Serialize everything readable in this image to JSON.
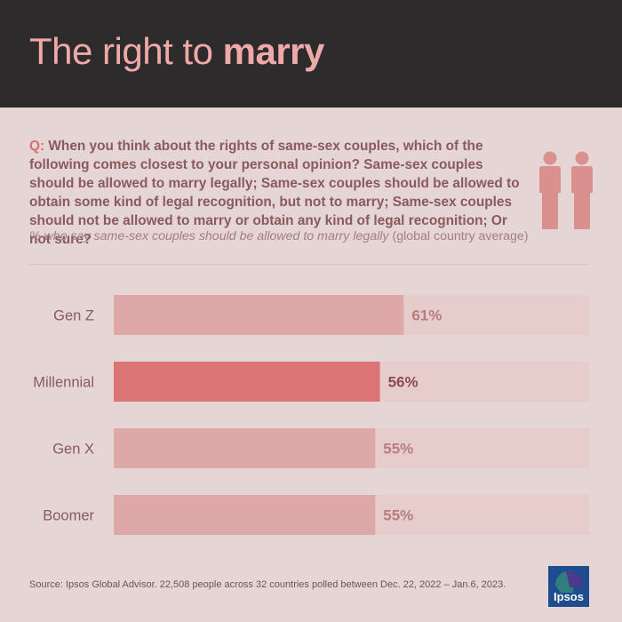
{
  "header": {
    "title_plain": "The right to ",
    "title_bold": "marry"
  },
  "question": {
    "label": "Q:",
    "text": "When you think about the rights of same-sex couples, which of the following comes closest to your personal opinion? Same-sex couples should be allowed to marry legally; Same-sex couples should be allowed to obtain some kind of legal recognition, but not to marry; Same-sex couples should not be allowed to marry or obtain any kind of legal recognition; Or not sure?"
  },
  "subtitle": {
    "italic": "% who say same-sex couples should be allowed to marry legally",
    "plain": " (global country average)"
  },
  "chart_data": {
    "type": "bar",
    "orientation": "horizontal",
    "categories": [
      "Gen Z",
      "Millennial",
      "Gen X",
      "Boomer"
    ],
    "values": [
      61,
      56,
      55,
      55
    ],
    "value_labels": [
      "61%",
      "56%",
      "55%",
      "55%"
    ],
    "highlighted_category": "Millennial",
    "xlim": [
      0,
      100
    ],
    "grid": false,
    "colors": {
      "bar": "#dfa8a8",
      "bar_highlight": "#db7575",
      "track": "#e7cccc",
      "label": "#8a5a5c",
      "value_label": "#b87d7f",
      "value_label_highlight": "#8a4c4e"
    }
  },
  "colors": {
    "header_bg": "#2d2b2b",
    "title": "#f0a9a9",
    "page_bg": "#e5d5d5",
    "icon": "#d9908e",
    "logo_bg": "#1d4d8f"
  },
  "footer": {
    "source": "Source: Ipsos Global Advisor. 22,508 people across 32 countries polled between Dec. 22, 2022 – Jan.6, 2023.",
    "logo_text": "Ipsos",
    "people_icon": "two-people-icon"
  }
}
